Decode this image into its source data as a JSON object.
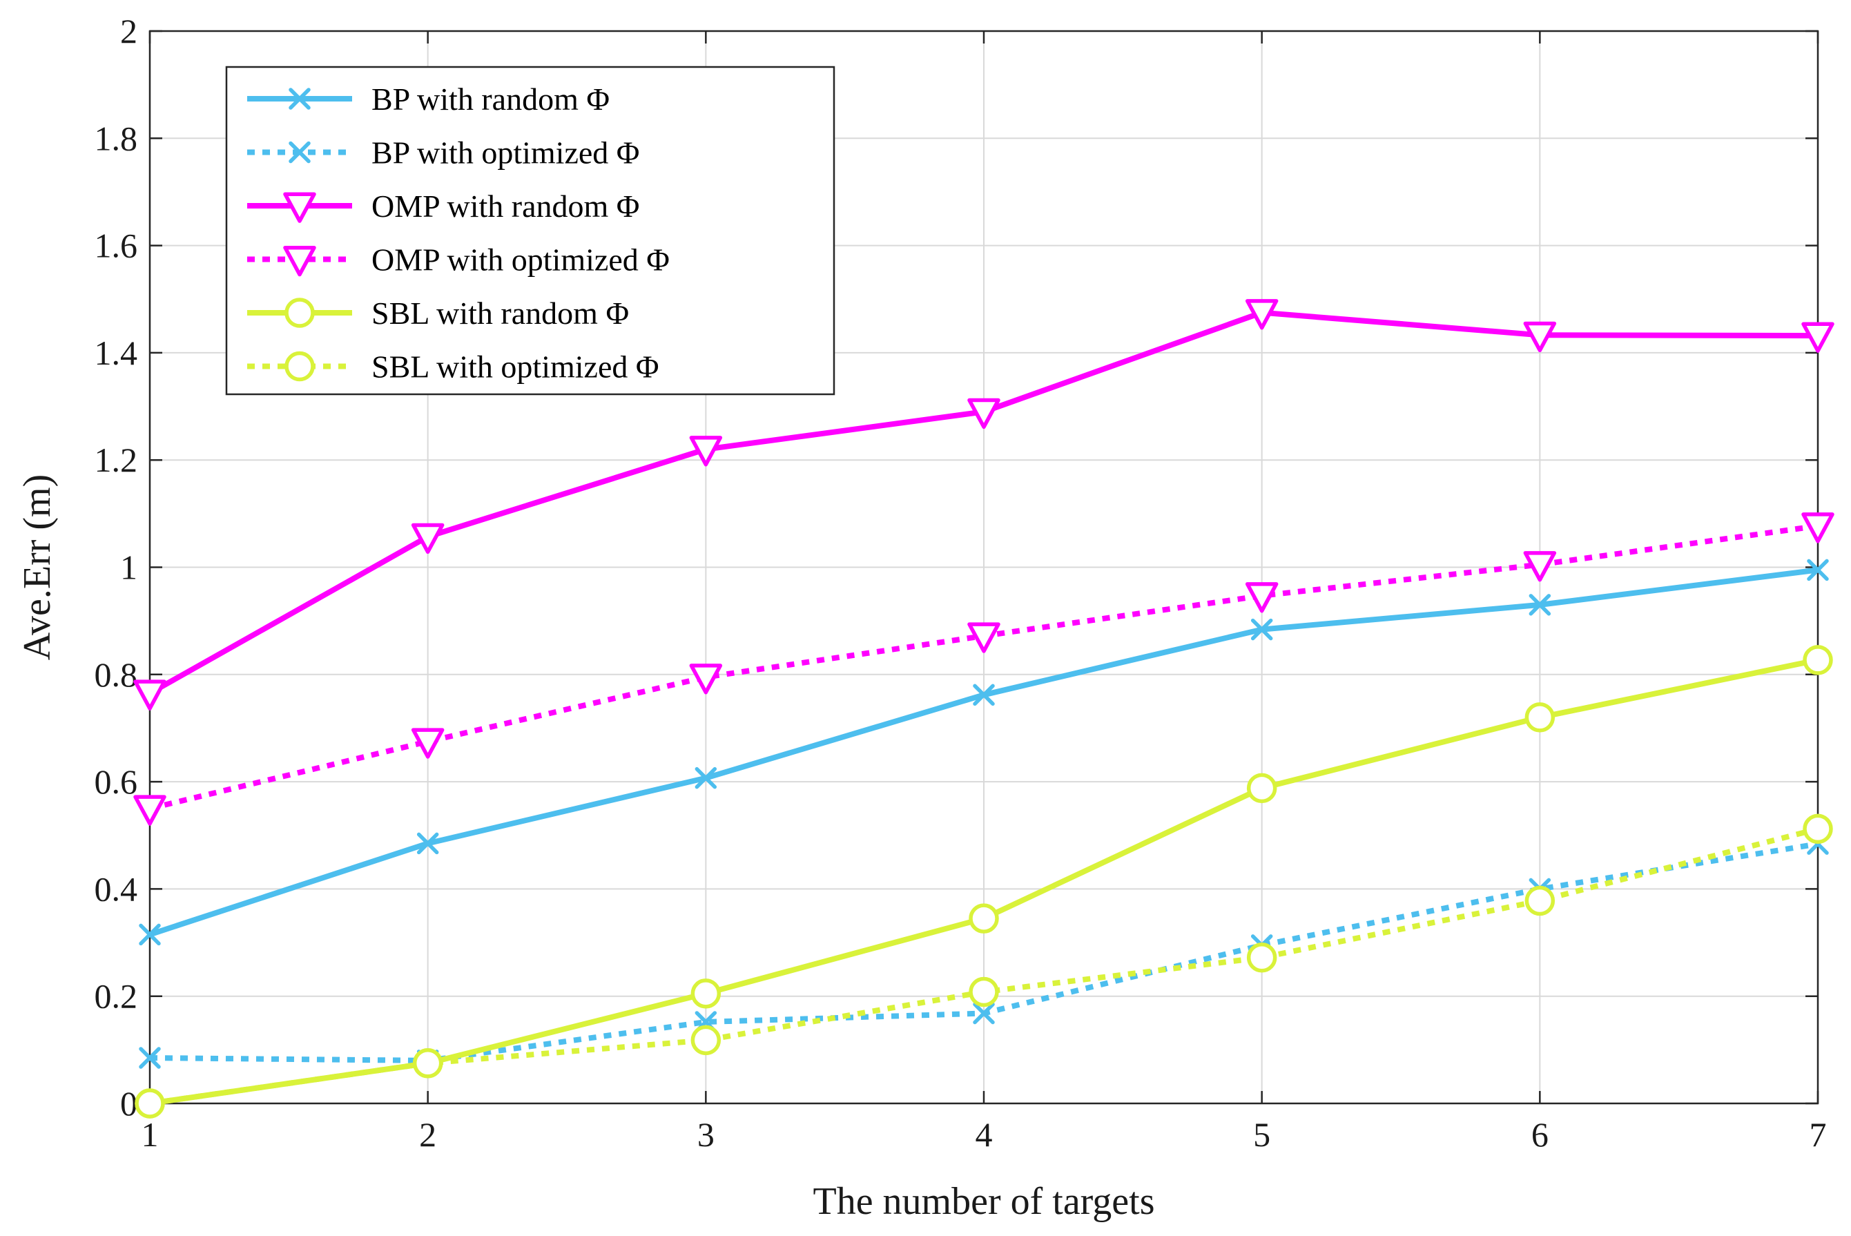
{
  "chart_data": {
    "type": "line",
    "xlabel": "The number of targets",
    "ylabel": "Ave.Err (m)",
    "xlim": [
      1,
      7
    ],
    "ylim": [
      0,
      2
    ],
    "xticks": [
      1,
      2,
      3,
      4,
      5,
      6,
      7
    ],
    "xtick_labels": [
      "1",
      "2",
      "3",
      "4",
      "5",
      "6",
      "7"
    ],
    "yticks": [
      0,
      0.2,
      0.4,
      0.6,
      0.8,
      1.0,
      1.2,
      1.4,
      1.6,
      1.8,
      2.0
    ],
    "ytick_labels": [
      "0",
      "0.2",
      "0.4",
      "0.6",
      "0.8",
      "1",
      "1.2",
      "1.4",
      "1.6",
      "1.8",
      "2"
    ],
    "grid": true,
    "legend_position": "top-left",
    "x": [
      1,
      2,
      3,
      4,
      5,
      6,
      7
    ],
    "series": [
      {
        "name": "BP with random Φ",
        "color": "#4dbeee",
        "dash": "solid",
        "marker": "x",
        "values": [
          0.315,
          0.485,
          0.607,
          0.762,
          0.884,
          0.93,
          0.995
        ]
      },
      {
        "name": "BP with optimized Φ",
        "color": "#4dbeee",
        "dash": "dotted",
        "marker": "x",
        "values": [
          0.085,
          0.08,
          0.152,
          0.168,
          0.295,
          0.4,
          0.484
        ]
      },
      {
        "name": "OMP with random Φ",
        "color": "#ff00ff",
        "dash": "solid",
        "marker": "triangle-down",
        "values": [
          0.765,
          1.057,
          1.22,
          1.29,
          1.475,
          1.433,
          1.432
        ]
      },
      {
        "name": "OMP with optimized Φ",
        "color": "#ff00ff",
        "dash": "dotted",
        "marker": "triangle-down",
        "values": [
          0.55,
          0.675,
          0.795,
          0.872,
          0.947,
          1.005,
          1.077
        ]
      },
      {
        "name": "SBL with random Φ",
        "color": "#d9f23a",
        "dash": "solid",
        "marker": "circle",
        "values": [
          0.0,
          0.075,
          0.205,
          0.345,
          0.588,
          0.72,
          0.827
        ]
      },
      {
        "name": "SBL with optimized Φ",
        "color": "#d9f23a",
        "dash": "dotted",
        "marker": "circle",
        "values": [
          0.0,
          0.075,
          0.118,
          0.208,
          0.272,
          0.378,
          0.512
        ]
      }
    ]
  }
}
